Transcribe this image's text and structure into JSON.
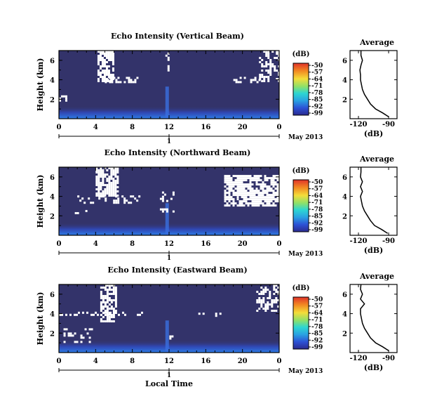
{
  "chart_data": [
    {
      "type": "heatmap",
      "title": "Echo Intensity (Vertical Beam)",
      "ylabel": "Height (km)",
      "xticks": [
        "0",
        "4",
        "8",
        "12",
        "16",
        "20",
        "0"
      ],
      "yticks": [
        "2",
        "4",
        "6"
      ],
      "date_tick": "1",
      "date_label": "May 2013",
      "colorbar": {
        "unit": "(dB)",
        "ticks": [
          "-50",
          "-57",
          "-64",
          "-71",
          "-78",
          "-85",
          "-92",
          "-99"
        ]
      },
      "average_profile": {
        "title": "Average",
        "xlabel": "(dB)",
        "xticks": [
          "-120",
          "-90"
        ],
        "yticks": [
          "2",
          "4",
          "6"
        ],
        "x": [
          -90,
          -96,
          -103,
          -108,
          -111,
          -114,
          -116,
          -117,
          -118,
          -118,
          -118.5,
          -117.5,
          -116,
          -117.5,
          -117.5
        ],
        "y": [
          0.2,
          0.6,
          1.0,
          1.5,
          2.0,
          2.5,
          3.0,
          3.5,
          4.0,
          4.5,
          5.0,
          5.5,
          6.0,
          6.5,
          7.0
        ]
      }
    },
    {
      "type": "heatmap",
      "title": "Echo Intensity (Northward Beam)",
      "ylabel": "Height (km)",
      "xticks": [
        "0",
        "4",
        "8",
        "12",
        "16",
        "20",
        "0"
      ],
      "yticks": [
        "2",
        "4",
        "6"
      ],
      "date_tick": "1",
      "date_label": "May 2013",
      "colorbar": {
        "unit": "(dB)",
        "ticks": [
          "-50",
          "-57",
          "-64",
          "-71",
          "-78",
          "-85",
          "-92",
          "-99"
        ]
      },
      "average_profile": {
        "title": "Average",
        "xlabel": "(dB)",
        "xticks": [
          "-120",
          "-90"
        ],
        "yticks": [
          "2",
          "4",
          "6"
        ],
        "x": [
          -91,
          -97,
          -104,
          -108,
          -111,
          -114,
          -116,
          -117,
          -118,
          -116,
          -118,
          -116,
          -118,
          -117.5,
          -117.5
        ],
        "y": [
          0.2,
          0.6,
          1.0,
          1.5,
          2.0,
          2.5,
          3.0,
          3.5,
          4.0,
          4.5,
          5.0,
          5.5,
          6.0,
          6.5,
          7.0
        ]
      }
    },
    {
      "type": "heatmap",
      "title": "Echo Intensity (Eastward Beam)",
      "ylabel": "Height (km)",
      "xticks": [
        "0",
        "4",
        "8",
        "12",
        "16",
        "20",
        "0"
      ],
      "yticks": [
        "2",
        "4",
        "6"
      ],
      "date_tick": "1",
      "date_label": "May 2013",
      "xlabel": "Local Time",
      "colorbar": {
        "unit": "(dB)",
        "ticks": [
          "-50",
          "-57",
          "-64",
          "-71",
          "-78",
          "-85",
          "-92",
          "-99"
        ]
      },
      "average_profile": {
        "title": "Average",
        "xlabel": "(dB)",
        "xticks": [
          "-120",
          "-90"
        ],
        "yticks": [
          "2",
          "4",
          "6"
        ],
        "x": [
          -90,
          -96,
          -103,
          -108,
          -111,
          -114,
          -116,
          -117,
          -118,
          -118,
          -114,
          -118,
          -116,
          -118,
          -117.5
        ],
        "y": [
          0.2,
          0.6,
          1.0,
          1.5,
          2.0,
          2.5,
          3.0,
          3.5,
          4.0,
          4.5,
          5.0,
          5.5,
          6.0,
          6.5,
          7.0
        ]
      }
    }
  ],
  "colors": {
    "background_field": "#33336a",
    "near_surface": "#3047c8",
    "no_data": "#ffffff",
    "colorbar": [
      "#d63a2b",
      "#f08a24",
      "#f4d43a",
      "#7fd867",
      "#2bd1d0",
      "#2a9fe0",
      "#2d53d6",
      "#2a2c9a"
    ]
  }
}
